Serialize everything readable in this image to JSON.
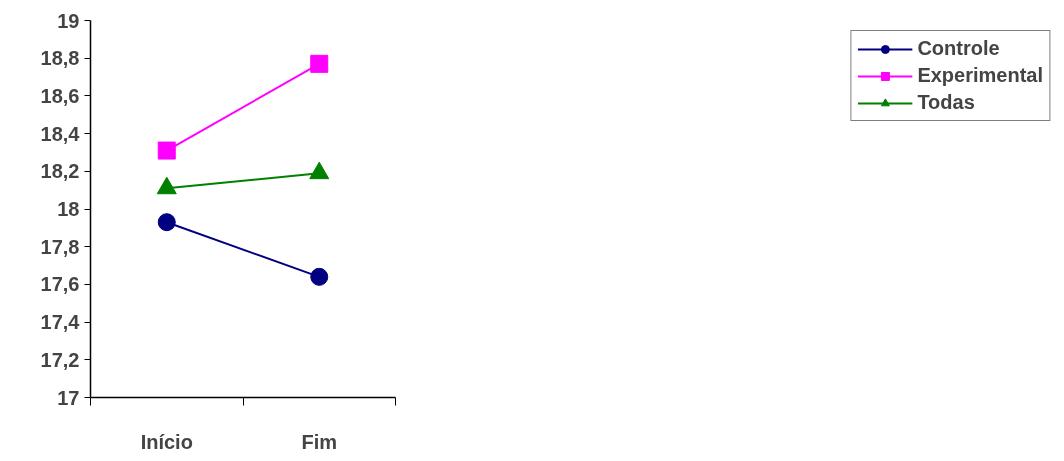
{
  "chart_data": {
    "type": "line",
    "categories": [
      "Início",
      "Fim"
    ],
    "series": [
      {
        "name": "Controle",
        "color": "#000080",
        "values": [
          17.93,
          17.64
        ],
        "marker": "circle"
      },
      {
        "name": "Experimental",
        "color": "#ff00ff",
        "values": [
          18.31,
          18.77
        ],
        "marker": "square"
      },
      {
        "name": "Todas",
        "color": "#008000",
        "values": [
          18.11,
          18.19
        ],
        "marker": "triangle"
      }
    ],
    "ylim": [
      17,
      19
    ],
    "yticks": [
      17,
      {
        "value": 17.2,
        "label": "17,2"
      },
      {
        "value": 17.4,
        "label": "17,4"
      },
      {
        "value": 17.6,
        "label": "17,6"
      },
      {
        "value": 17.8,
        "label": "17,8"
      },
      18,
      {
        "value": 18.2,
        "label": "18,2"
      },
      {
        "value": 18.4,
        "label": "18,4"
      },
      {
        "value": 18.6,
        "label": "18,6"
      },
      {
        "value": 18.8,
        "label": "18,8"
      },
      19
    ],
    "grid": false,
    "legend": "right",
    "line_style": "solid"
  }
}
